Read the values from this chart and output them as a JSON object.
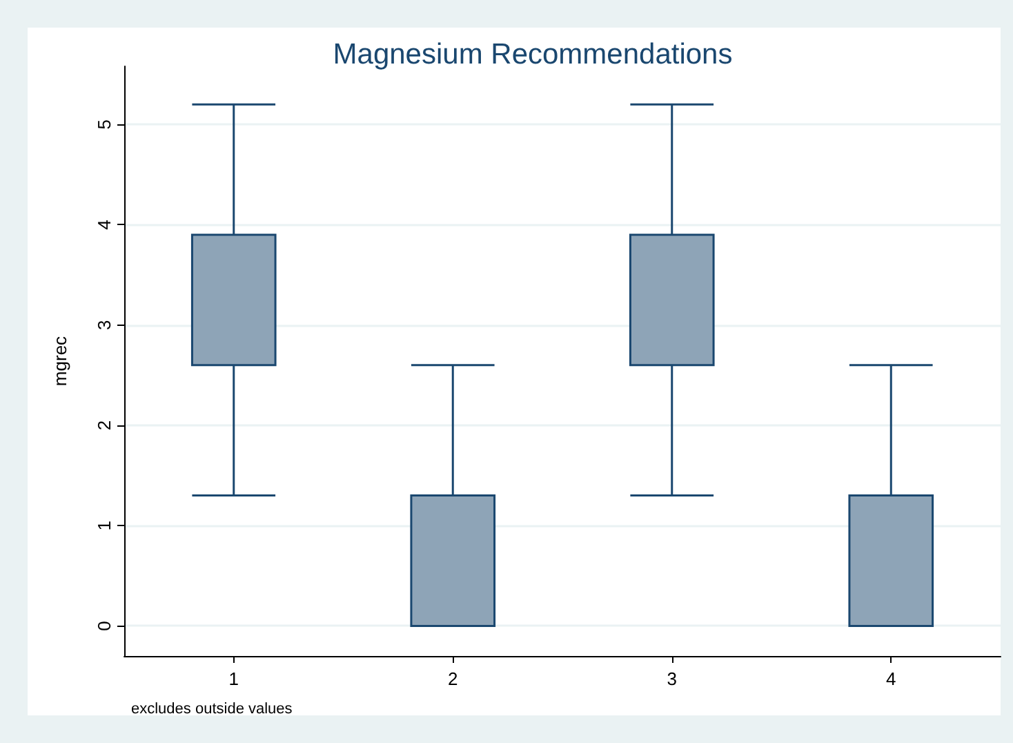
{
  "chart_data": {
    "type": "box",
    "title": "Magnesium Recommendations",
    "ylabel": "mgrec",
    "categories": [
      "1",
      "2",
      "3",
      "4"
    ],
    "boxes": [
      {
        "low": 1.3,
        "q1": 2.6,
        "median": 2.6,
        "q3": 3.9,
        "high": 5.2
      },
      {
        "low": 0,
        "q1": 0,
        "median": 0,
        "q3": 1.3,
        "high": 2.6
      },
      {
        "low": 1.3,
        "q1": 2.6,
        "median": 2.6,
        "q3": 3.9,
        "high": 5.2
      },
      {
        "low": 0,
        "q1": 0,
        "median": 0,
        "q3": 1.3,
        "high": 2.6
      }
    ],
    "color": "#8ea4b7",
    "ylim": [
      -0.3,
      5.58
    ],
    "yticks": [
      0,
      1,
      2,
      3,
      4,
      5
    ],
    "grid": "y",
    "annotations": [
      "excludes outside values"
    ]
  }
}
